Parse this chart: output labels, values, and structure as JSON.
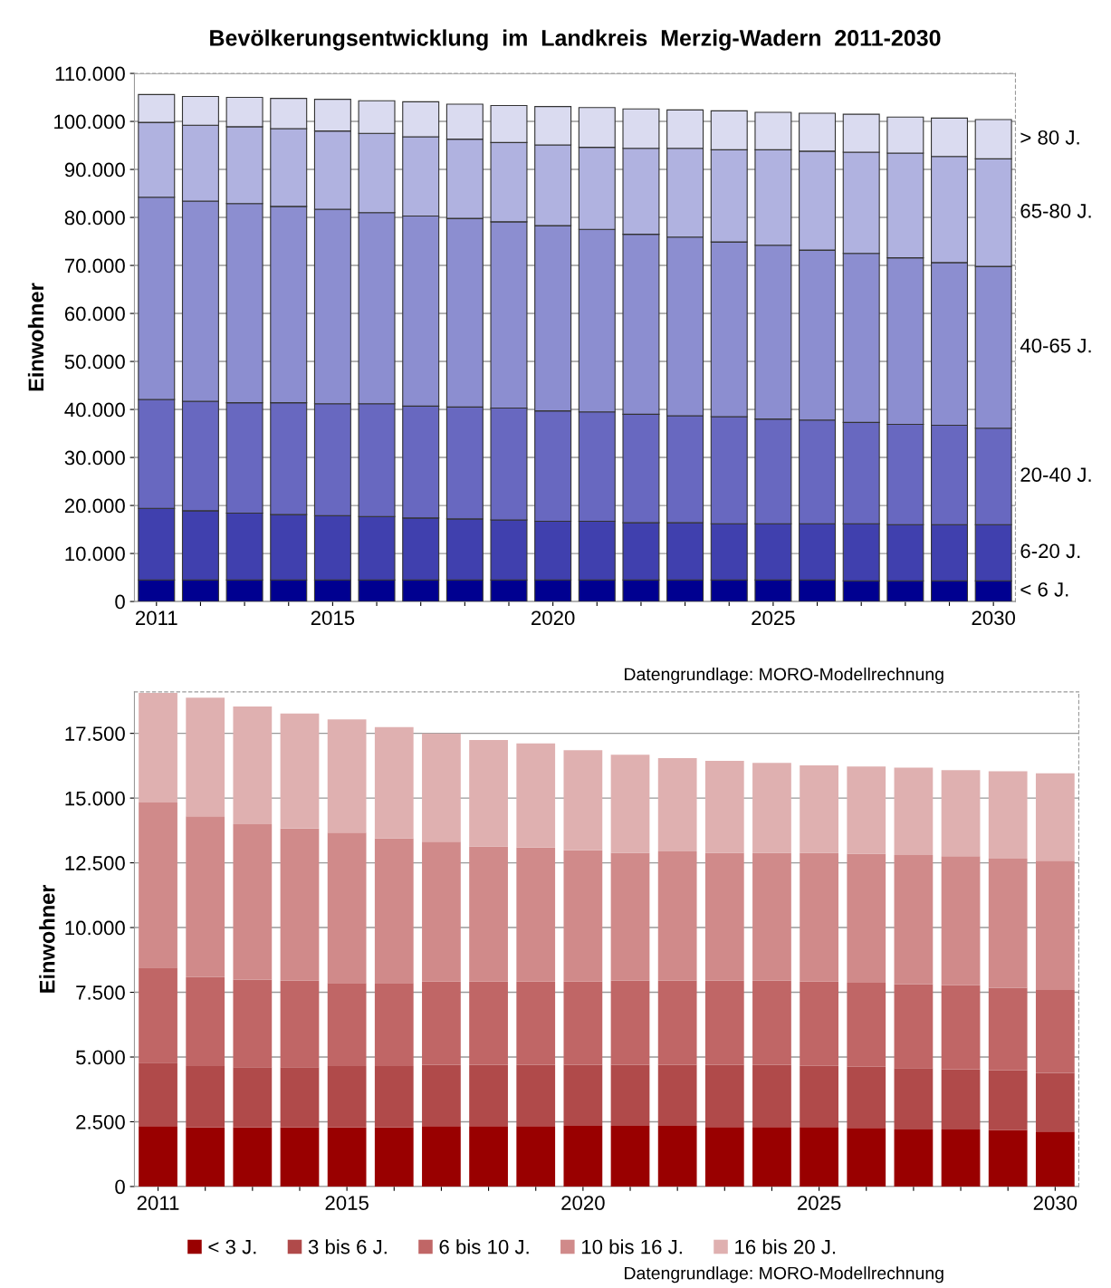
{
  "chart_data": [
    {
      "type": "bar",
      "stacked": true,
      "title": "Bevölkerungsentwicklung  im  Landkreis  Merzig-Wadern  2011-2030",
      "ylabel": "Einwohner",
      "categories": [
        "2011",
        null,
        null,
        null,
        "2015",
        null,
        null,
        null,
        null,
        "2020",
        null,
        null,
        null,
        null,
        "2025",
        null,
        null,
        null,
        null,
        "2030"
      ],
      "ylim": [
        0,
        110000
      ],
      "yticks": [
        {
          "value": 0,
          "label": "0"
        },
        {
          "value": 10000,
          "label": "10.000"
        },
        {
          "value": 20000,
          "label": "20.000"
        },
        {
          "value": 30000,
          "label": "30.000"
        },
        {
          "value": 40000,
          "label": "40.000"
        },
        {
          "value": 50000,
          "label": "50.000"
        },
        {
          "value": 60000,
          "label": "60.000"
        },
        {
          "value": 70000,
          "label": "70.000"
        },
        {
          "value": 80000,
          "label": "80.000"
        },
        {
          "value": 90000,
          "label": "90.000"
        },
        {
          "value": 100000,
          "label": "100.000"
        },
        {
          "value": 110000,
          "label": "110.000"
        }
      ],
      "grid": "y",
      "legend": false,
      "series": [
        {
          "name": "< 6 J.",
          "color": "#000090",
          "values": [
            4500,
            4500,
            4500,
            4500,
            4500,
            4500,
            4500,
            4500,
            4500,
            4500,
            4500,
            4500,
            4500,
            4500,
            4500,
            4500,
            4300,
            4300,
            4300,
            4300
          ]
        },
        {
          "name": "6-20 J.",
          "color": "#4040ae",
          "values": [
            14900,
            14400,
            13900,
            13600,
            13400,
            13200,
            12900,
            12700,
            12500,
            12200,
            12200,
            11900,
            11900,
            11700,
            11700,
            11700,
            11900,
            11700,
            11700,
            11700
          ]
        },
        {
          "name": "20-40 J.",
          "color": "#6868c0",
          "values": [
            22700,
            22800,
            23000,
            23300,
            23300,
            23500,
            23300,
            23300,
            23300,
            23000,
            22800,
            22600,
            22300,
            22300,
            21800,
            21600,
            21100,
            20900,
            20700,
            20100
          ]
        },
        {
          "name": "40-65 J.",
          "color": "#8c8ed0",
          "values": [
            42100,
            41700,
            41500,
            40900,
            40500,
            39800,
            39600,
            39300,
            38800,
            38600,
            38000,
            37500,
            37200,
            36400,
            36200,
            35400,
            35200,
            34700,
            33900,
            33700
          ]
        },
        {
          "name": "65-80 J.",
          "color": "#b0b2e0",
          "values": [
            15600,
            15800,
            16000,
            16200,
            16300,
            16500,
            16500,
            16500,
            16500,
            16800,
            17100,
            17900,
            18500,
            19200,
            19900,
            20600,
            21100,
            21800,
            22100,
            22400
          ]
        },
        {
          "name": "> 80 J.",
          "color": "#dadbf0",
          "values": [
            5800,
            6000,
            6100,
            6300,
            6600,
            6800,
            7300,
            7300,
            7700,
            8000,
            8300,
            8200,
            8000,
            8100,
            7800,
            7900,
            7900,
            7500,
            8000,
            8200
          ]
        }
      ],
      "annotations": [
        "Datengrundlage: MORO-Modellrechnung"
      ]
    },
    {
      "type": "bar",
      "stacked": true,
      "ylabel": "Einwohner",
      "categories": [
        "2011",
        null,
        null,
        null,
        "2015",
        null,
        null,
        null,
        null,
        "2020",
        null,
        null,
        null,
        null,
        "2025",
        null,
        null,
        null,
        null,
        "2030"
      ],
      "ylim": [
        0,
        19100
      ],
      "yticks": [
        {
          "value": 0,
          "label": "0"
        },
        {
          "value": 2500,
          "label": "2.500"
        },
        {
          "value": 5000,
          "label": "5.000"
        },
        {
          "value": 7500,
          "label": "7.500"
        },
        {
          "value": 10000,
          "label": "10.000"
        },
        {
          "value": 12500,
          "label": "12.500"
        },
        {
          "value": 15000,
          "label": "15.000"
        },
        {
          "value": 17500,
          "label": "17.500"
        }
      ],
      "grid": "y",
      "legend": "bottom",
      "series": [
        {
          "name": "< 3 J.",
          "color": "#990000",
          "values": [
            2330,
            2280,
            2280,
            2280,
            2280,
            2280,
            2330,
            2330,
            2330,
            2340,
            2340,
            2340,
            2300,
            2300,
            2300,
            2260,
            2200,
            2200,
            2180,
            2120
          ]
        },
        {
          "name": "3 bis 6 J.",
          "color": "#b04a4a",
          "values": [
            2450,
            2370,
            2330,
            2330,
            2370,
            2370,
            2370,
            2370,
            2370,
            2360,
            2360,
            2360,
            2400,
            2400,
            2360,
            2360,
            2370,
            2330,
            2300,
            2270
          ]
        },
        {
          "name": "6 bis 10 J.",
          "color": "#c06666",
          "values": [
            3670,
            3440,
            3380,
            3340,
            3210,
            3210,
            3210,
            3210,
            3210,
            3210,
            3250,
            3250,
            3250,
            3250,
            3250,
            3250,
            3250,
            3240,
            3200,
            3200
          ]
        },
        {
          "name": "10 bis 16 J.",
          "color": "#d08a8a",
          "values": [
            6380,
            6210,
            6000,
            5870,
            5810,
            5590,
            5410,
            5220,
            5180,
            5070,
            4940,
            4990,
            4940,
            4940,
            4980,
            4980,
            4980,
            4990,
            4980,
            4990
          ]
        },
        {
          "name": "16 bis 20 J.",
          "color": "#dfb0b0",
          "values": [
            4230,
            4580,
            4550,
            4450,
            4370,
            4290,
            4180,
            4110,
            4020,
            3870,
            3780,
            3600,
            3550,
            3470,
            3370,
            3370,
            3380,
            3320,
            3380,
            3380
          ]
        }
      ],
      "annotations": [
        "Datengrundlage: MORO-Modellrechnung"
      ]
    }
  ]
}
